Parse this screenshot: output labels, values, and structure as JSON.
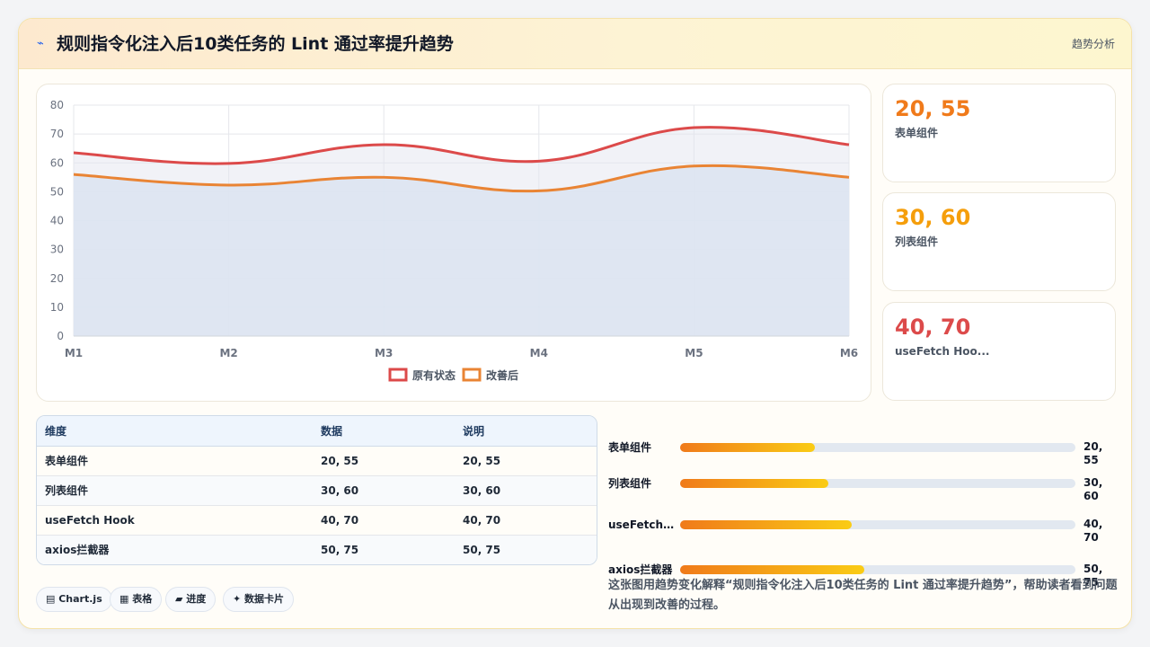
{
  "header": {
    "title": "规则指令化注入后10类任务的 Lint 通过率提升趋势",
    "tag": "趋势分析"
  },
  "colors": {
    "series_original": "#dc4a4a",
    "series_improved": "#e98434",
    "area_fill": "#dce4f1",
    "accent_orange": "#f07a1a",
    "accent_amber": "#f59e0b",
    "accent_red": "#dc4a4a"
  },
  "chart_data": {
    "type": "line",
    "x": [
      "M1",
      "M2",
      "M3",
      "M4",
      "M5",
      "M6"
    ],
    "ylim": [
      0,
      80
    ],
    "yticks": [
      0,
      10,
      20,
      30,
      40,
      50,
      60,
      70,
      80
    ],
    "grid": true,
    "legend_position": "bottom",
    "series": [
      {
        "name": "原有状态",
        "values": [
          63.5,
          59.8,
          66.3,
          60.6,
          72.2,
          66.3
        ]
      },
      {
        "name": "改善后",
        "values": [
          56,
          52.3,
          55,
          50.3,
          58.9,
          55
        ]
      }
    ]
  },
  "stats": [
    {
      "value": "20, 55",
      "label": "表单组件",
      "color": "#f07a1a"
    },
    {
      "value": "30, 60",
      "label": "列表组件",
      "color": "#f59e0b"
    },
    {
      "value": "40, 70",
      "label": "useFetch Hoo...",
      "color": "#dc4a4a"
    }
  ],
  "table": {
    "headers": [
      "维度",
      "数据",
      "说明"
    ],
    "rows": [
      [
        "表单组件",
        "20, 55",
        "20, 55"
      ],
      [
        "列表组件",
        "30, 60",
        "30, 60"
      ],
      [
        "useFetch Hook",
        "40, 70",
        "40, 70"
      ],
      [
        "axios拦截器",
        "50, 75",
        "50, 75"
      ]
    ]
  },
  "progress": [
    {
      "label": "表单组件",
      "value": "20, 55",
      "fill_pct": 34
    },
    {
      "label": "列表组件",
      "value": "30, 60",
      "fill_pct": 37.5
    },
    {
      "label": "useFetch...",
      "value": "40, 70",
      "fill_pct": 43.5
    },
    {
      "label": "axios拦截器",
      "value": "50, 75",
      "fill_pct": 46.5
    }
  ],
  "pills": [
    {
      "icon": "chart-icon",
      "glyph": "▤",
      "label": "Chart.js"
    },
    {
      "icon": "table-icon",
      "glyph": "▦",
      "label": "表格"
    },
    {
      "icon": "progress-icon",
      "glyph": "▰",
      "label": "进度"
    },
    {
      "icon": "card-icon",
      "glyph": "✦",
      "label": "数据卡片"
    }
  ],
  "description": "这张图用趋势变化解释“规则指令化注入后10类任务的 Lint 通过率提升趋势”，帮助读者看到问题从出现到改善的过程。"
}
